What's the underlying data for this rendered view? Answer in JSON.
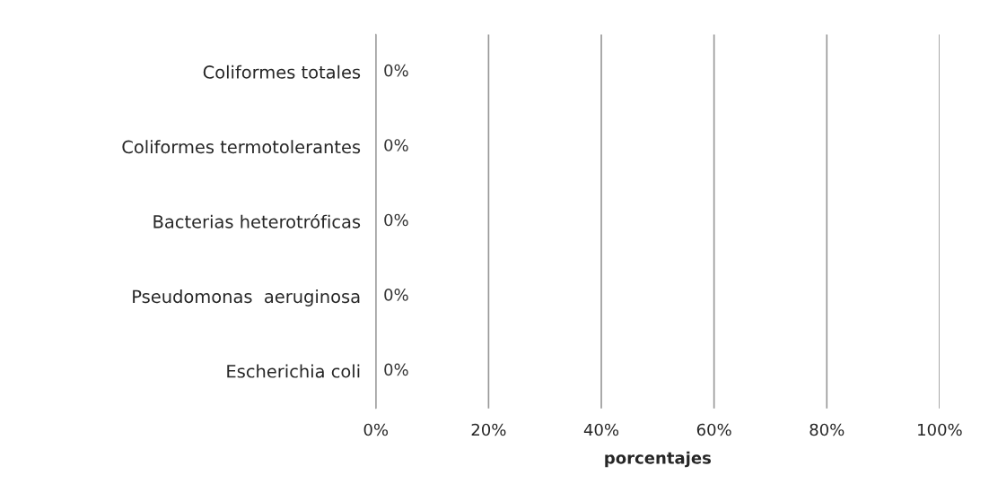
{
  "chart_data": {
    "type": "bar",
    "orientation": "horizontal",
    "xlabel": "porcentajes",
    "categories": [
      "Coliformes totales",
      "Coliformes termotolerantes",
      "Bacterias heterotróficas",
      "Pseudomonas  aeruginosa",
      "Escherichia coli"
    ],
    "values": [
      0,
      0,
      0,
      0,
      0
    ],
    "value_labels": [
      "0%",
      "0%",
      "0%",
      "0%",
      "0%"
    ],
    "xlim": [
      0,
      100
    ],
    "xticks": [
      {
        "value": 0,
        "label": "0%"
      },
      {
        "value": 20,
        "label": "20%"
      },
      {
        "value": 40,
        "label": "40%"
      },
      {
        "value": 60,
        "label": "60%"
      },
      {
        "value": 80,
        "label": "80%"
      },
      {
        "value": 100,
        "label": "100%"
      }
    ],
    "grid": "x",
    "legend": false
  }
}
